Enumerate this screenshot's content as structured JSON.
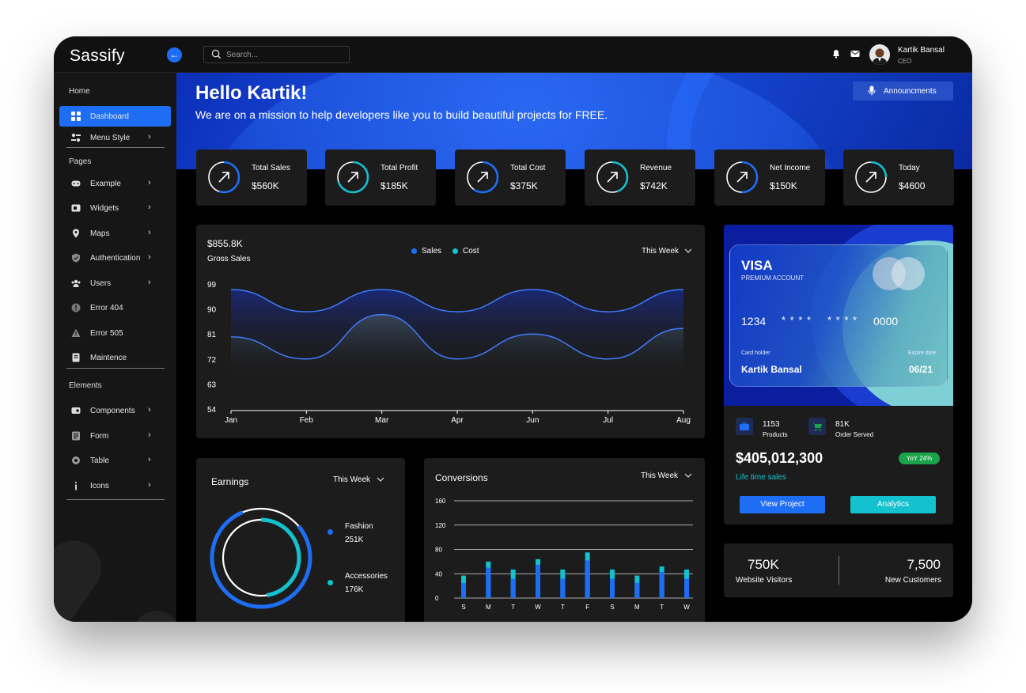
{
  "app": {
    "logo": "Sassify"
  },
  "search": {
    "placeholder": "Search..."
  },
  "user": {
    "name": "Kartik Bansal",
    "role": "CEO"
  },
  "sidebar": {
    "sections": [
      {
        "title": "Home"
      },
      {
        "title": "Pages"
      },
      {
        "title": "Elements"
      }
    ],
    "items": [
      {
        "label": "Dashboard",
        "icon": "grid-icon",
        "active": true
      },
      {
        "label": "Menu Style",
        "icon": "toggle-icon",
        "chevron": true
      },
      {
        "label": "Example",
        "icon": "gamepad-icon",
        "chevron": true
      },
      {
        "label": "Widgets",
        "icon": "widget-icon",
        "chevron": true
      },
      {
        "label": "Maps",
        "icon": "map-pin-icon",
        "chevron": true
      },
      {
        "label": "Authentication",
        "icon": "shield-icon",
        "chevron": true
      },
      {
        "label": "Users",
        "icon": "users-icon",
        "chevron": true
      },
      {
        "label": "Error 404",
        "icon": "error-circle-icon"
      },
      {
        "label": "Error 505",
        "icon": "warning-icon"
      },
      {
        "label": "Maintence",
        "icon": "document-icon"
      },
      {
        "label": "Components",
        "icon": "component-icon",
        "chevron": true
      },
      {
        "label": "Form",
        "icon": "form-icon",
        "chevron": true
      },
      {
        "label": "Table",
        "icon": "table-icon",
        "chevron": true
      },
      {
        "label": "Icons",
        "icon": "info-icon",
        "chevron": true
      }
    ]
  },
  "hero": {
    "title": "Hello Kartik!",
    "subtitle": "We are on a mission to help developers like you to build beautiful projects for FREE.",
    "announce_label": "Announcments"
  },
  "stats": [
    {
      "title": "Total Sales",
      "value": "$560K",
      "progress": 0.55
    },
    {
      "title": "Total Profit",
      "value": "$185K",
      "progress": 0.7
    },
    {
      "title": "Total Cost",
      "value": "$375K",
      "progress": 0.6
    },
    {
      "title": "Revenue",
      "value": "$742K",
      "progress": 0.45
    },
    {
      "title": "Net Income",
      "value": "$150K",
      "progress": 0.5
    },
    {
      "title": "Today",
      "value": "$4600",
      "progress": 0.25
    }
  ],
  "gross_sales": {
    "value": "$855.8K",
    "label": "Gross Sales",
    "legend": [
      "Sales",
      "Cost"
    ],
    "period": "This Week"
  },
  "earnings": {
    "title": "Earnings",
    "period": "This Week",
    "items": [
      {
        "label": "Fashion",
        "value": "251K"
      },
      {
        "label": "Accessories",
        "value": "176K"
      }
    ]
  },
  "conversions": {
    "title": "Conversions",
    "period": "This Week"
  },
  "card": {
    "brand": "VISA",
    "account": "PREMIUM ACCOUNT",
    "number_parts": [
      "1234",
      "* * * *",
      "* * * *",
      "0000"
    ],
    "holder_label": "Card holder",
    "holder": "Kartik Bansal",
    "expire_label": "Expire date",
    "expire": "06/21"
  },
  "summary": {
    "products_value": "1153",
    "products_label": "Products",
    "orders_value": "81K",
    "orders_label": "Order Served",
    "total": "$405,012,300",
    "badge": "YoY 24%",
    "lifetime_label": "Life time sales",
    "view_button": "View Project",
    "analytics_button": "Analytics"
  },
  "visitors": {
    "website_value": "750K",
    "website_label": "Website Visitors",
    "customers_value": "7,500",
    "customers_label": "New Customers"
  },
  "colors": {
    "accent": "#1e6ef5",
    "teal": "#14c1cf",
    "panel": "#1c1c1c",
    "green": "#1aa34a"
  },
  "chart_data": [
    {
      "type": "area",
      "categories": [
        "Jan",
        "Feb",
        "Mar",
        "Apr",
        "Jun",
        "Jul",
        "Aug"
      ],
      "ylim": [
        54,
        99
      ],
      "yticks": [
        99,
        90,
        81,
        72,
        63,
        54
      ],
      "series": [
        {
          "name": "Sales",
          "values": [
            97,
            89,
            97,
            89,
            97,
            89,
            97
          ]
        },
        {
          "name": "Cost",
          "values": [
            80,
            72,
            88,
            72,
            81,
            72,
            83
          ]
        }
      ]
    },
    {
      "type": "pie",
      "series": [
        {
          "name": "Fashion",
          "values": [
            251
          ]
        },
        {
          "name": "Accessories",
          "values": [
            176
          ]
        }
      ]
    },
    {
      "type": "bar",
      "categories": [
        "S",
        "M",
        "T",
        "W",
        "T",
        "F",
        "S",
        "M",
        "T",
        "W"
      ],
      "ylim": [
        0,
        160
      ],
      "yticks": [
        160,
        120,
        80,
        40,
        0
      ],
      "series": [
        {
          "values": [
            37,
            60,
            47,
            64,
            47,
            75,
            47,
            37,
            52,
            47
          ]
        },
        {
          "values": [
            25,
            50,
            32,
            55,
            32,
            62,
            32,
            25,
            43,
            32
          ]
        }
      ]
    }
  ]
}
